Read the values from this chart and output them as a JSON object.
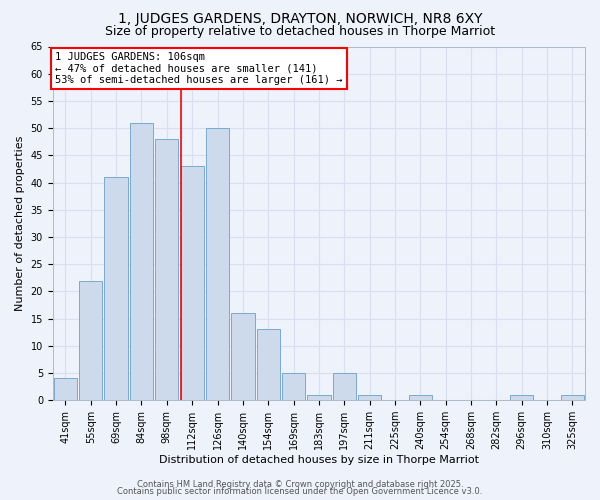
{
  "title_line1": "1, JUDGES GARDENS, DRAYTON, NORWICH, NR8 6XY",
  "title_line2": "Size of property relative to detached houses in Thorpe Marriot",
  "xlabel": "Distribution of detached houses by size in Thorpe Marriot",
  "ylabel": "Number of detached properties",
  "categories": [
    "41sqm",
    "55sqm",
    "69sqm",
    "84sqm",
    "98sqm",
    "112sqm",
    "126sqm",
    "140sqm",
    "154sqm",
    "169sqm",
    "183sqm",
    "197sqm",
    "211sqm",
    "225sqm",
    "240sqm",
    "254sqm",
    "268sqm",
    "282sqm",
    "296sqm",
    "310sqm",
    "325sqm"
  ],
  "values": [
    4,
    22,
    41,
    51,
    48,
    43,
    50,
    16,
    13,
    5,
    1,
    5,
    1,
    0,
    1,
    0,
    0,
    0,
    1,
    0,
    1
  ],
  "bar_color": "#ccdaeb",
  "bar_edge_color": "#7aaacf",
  "annotation_text": "1 JUDGES GARDENS: 106sqm\n← 47% of detached houses are smaller (141)\n53% of semi-detached houses are larger (161) →",
  "annotation_box_color": "white",
  "annotation_box_edge_color": "red",
  "vline_x_index": 4.57,
  "vline_color": "red",
  "ylim": [
    0,
    65
  ],
  "yticks": [
    0,
    5,
    10,
    15,
    20,
    25,
    30,
    35,
    40,
    45,
    50,
    55,
    60,
    65
  ],
  "footer_line1": "Contains HM Land Registry data © Crown copyright and database right 2025.",
  "footer_line2": "Contains public sector information licensed under the Open Government Licence v3.0.",
  "background_color": "#eef2fb",
  "grid_color": "#d8dff0",
  "title_fontsize": 10,
  "subtitle_fontsize": 9,
  "axis_label_fontsize": 8,
  "tick_fontsize": 7,
  "footer_fontsize": 6,
  "annotation_fontsize": 7.5
}
